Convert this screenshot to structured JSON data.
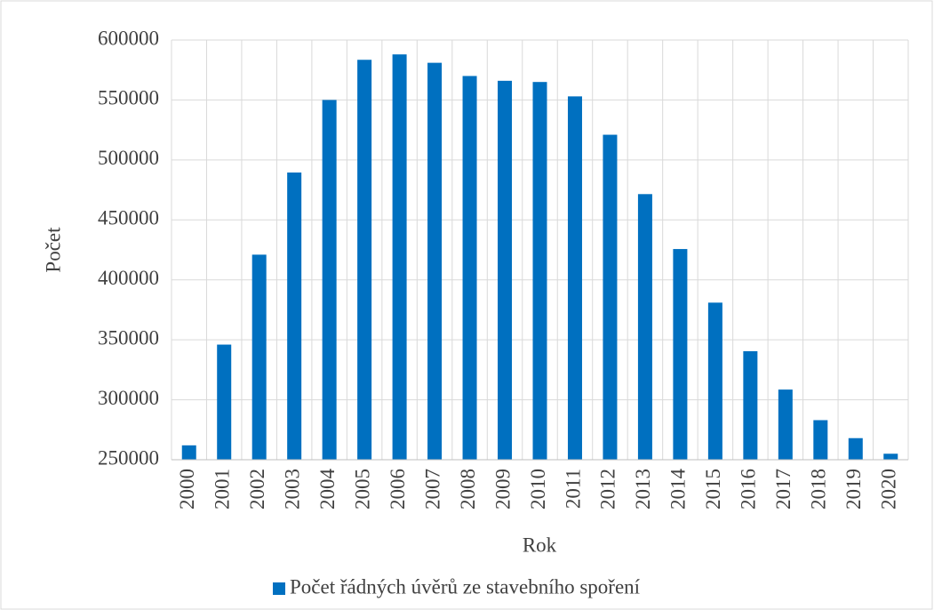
{
  "chart_data": {
    "type": "bar",
    "x_label": "Rok",
    "y_label": "Počet",
    "categories": [
      "2000",
      "2001",
      "2002",
      "2003",
      "2004",
      "2005",
      "2006",
      "2007",
      "2008",
      "2009",
      "2010",
      "2011",
      "2012",
      "2013",
      "2014",
      "2015",
      "2016",
      "2017",
      "2018",
      "2019",
      "2020"
    ],
    "series": [
      {
        "name": "Počet řádných úvěrů ze stavebního spoření",
        "color": "#0070c0",
        "values": [
          262000,
          346000,
          421000,
          489500,
          550000,
          583500,
          588000,
          581000,
          570000,
          566000,
          565000,
          553000,
          521000,
          471500,
          425700,
          381000,
          340500,
          308500,
          283000,
          268000,
          255000
        ]
      }
    ],
    "ylim": [
      250000,
      600000
    ],
    "yticks": [
      250000,
      300000,
      350000,
      400000,
      450000,
      500000,
      550000,
      600000
    ],
    "grid": true,
    "legend": "bottom"
  }
}
